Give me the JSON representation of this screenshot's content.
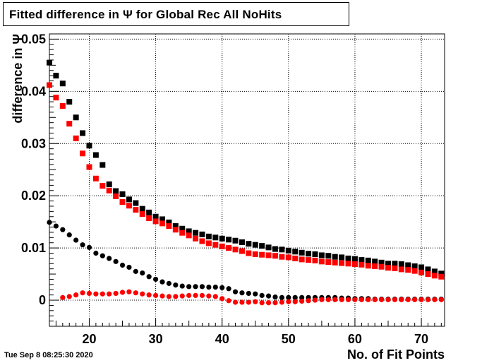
{
  "header": {
    "title": "Fitted difference in  Ψ  for Global Rec All NoHits"
  },
  "footer": {
    "timestamp": "Tue Sep  8 08:25:30 2020"
  },
  "chart_data": {
    "type": "scatter",
    "title": "Fitted difference in  Ψ  for Global Rec All NoHits",
    "xlabel": "No. of Fit Points",
    "ylabel": "difference in  Ψ",
    "xlim": [
      14,
      73.5
    ],
    "ylim": [
      -0.005,
      0.051
    ],
    "grid": true,
    "x_ticks": [
      20,
      30,
      40,
      50,
      60,
      70
    ],
    "x_tick_labels": [
      "20",
      "30",
      "40",
      "50",
      "60",
      "70"
    ],
    "y_ticks": [
      0,
      0.01,
      0.02,
      0.03,
      0.04,
      0.05
    ],
    "y_tick_labels": [
      "0",
      "0.01",
      "0.02",
      "0.03",
      "0.04",
      "0.05"
    ],
    "series": [
      {
        "color": "#000000",
        "marker": "square",
        "x": [
          14,
          15,
          16,
          17,
          18,
          19,
          20,
          21,
          22,
          23,
          24,
          25,
          26,
          27,
          28,
          29,
          30,
          31,
          32,
          33,
          34,
          35,
          36,
          37,
          38,
          39,
          40,
          41,
          42,
          43,
          44,
          45,
          46,
          47,
          48,
          49,
          50,
          51,
          52,
          53,
          54,
          55,
          56,
          57,
          58,
          59,
          60,
          61,
          62,
          63,
          64,
          65,
          66,
          67,
          68,
          69,
          70,
          71,
          72,
          73
        ],
        "values": [
          0.0455,
          0.043,
          0.0415,
          0.038,
          0.035,
          0.032,
          0.0296,
          0.0278,
          0.0259,
          0.0222,
          0.0209,
          0.0203,
          0.0193,
          0.0186,
          0.0175,
          0.0168,
          0.016,
          0.0155,
          0.0149,
          0.0142,
          0.0137,
          0.0132,
          0.0129,
          0.0126,
          0.0122,
          0.012,
          0.0118,
          0.0116,
          0.0114,
          0.0111,
          0.0108,
          0.0106,
          0.0104,
          0.0101,
          0.0098,
          0.0097,
          0.0095,
          0.0093,
          0.0091,
          0.0089,
          0.0088,
          0.0086,
          0.0085,
          0.0083,
          0.0082,
          0.008,
          0.0079,
          0.0077,
          0.0076,
          0.0074,
          0.0072,
          0.007,
          0.007,
          0.0069,
          0.0067,
          0.0065,
          0.0063,
          0.0059,
          0.0055,
          0.0051
        ]
      },
      {
        "color": "#ff0000",
        "marker": "square",
        "x": [
          14,
          15,
          16,
          17,
          18,
          19,
          20,
          21,
          22,
          23,
          24,
          25,
          26,
          27,
          28,
          29,
          30,
          31,
          32,
          33,
          34,
          35,
          36,
          37,
          38,
          39,
          40,
          41,
          42,
          43,
          44,
          45,
          46,
          47,
          48,
          49,
          50,
          51,
          52,
          53,
          54,
          55,
          56,
          57,
          58,
          59,
          60,
          61,
          62,
          63,
          64,
          65,
          66,
          67,
          68,
          69,
          70,
          71,
          72,
          73
        ],
        "values": [
          0.0412,
          0.0388,
          0.0372,
          0.0338,
          0.031,
          0.0281,
          0.0255,
          0.0233,
          0.0219,
          0.021,
          0.0199,
          0.0188,
          0.0181,
          0.0173,
          0.0165,
          0.0157,
          0.0151,
          0.0147,
          0.0142,
          0.0135,
          0.0129,
          0.0124,
          0.0118,
          0.0113,
          0.0109,
          0.0106,
          0.0103,
          0.01,
          0.0097,
          0.0094,
          0.009,
          0.0088,
          0.0087,
          0.0086,
          0.0085,
          0.0083,
          0.0082,
          0.008,
          0.0078,
          0.0077,
          0.0076,
          0.0074,
          0.0073,
          0.0072,
          0.0071,
          0.007,
          0.0069,
          0.0068,
          0.0066,
          0.0065,
          0.0064,
          0.0062,
          0.0061,
          0.0059,
          0.0058,
          0.0056,
          0.0053,
          0.005,
          0.0047,
          0.0045
        ]
      },
      {
        "color": "#000000",
        "marker": "circle",
        "x": [
          14,
          15,
          16,
          17,
          18,
          19,
          20,
          21,
          22,
          23,
          24,
          25,
          26,
          27,
          28,
          29,
          30,
          31,
          32,
          33,
          34,
          35,
          36,
          37,
          38,
          39,
          40,
          41,
          42,
          43,
          44,
          45,
          46,
          47,
          48,
          49,
          50,
          51,
          52,
          53,
          54,
          55,
          56,
          57,
          58,
          59,
          60,
          61,
          62,
          63,
          64,
          65,
          66,
          67,
          68,
          69,
          70,
          71,
          72,
          73
        ],
        "values": [
          0.0149,
          0.0142,
          0.0135,
          0.0125,
          0.0115,
          0.0106,
          0.0101,
          0.009,
          0.0085,
          0.008,
          0.0074,
          0.0067,
          0.0063,
          0.0055,
          0.0052,
          0.0045,
          0.004,
          0.0035,
          0.0032,
          0.0029,
          0.0027,
          0.0026,
          0.0026,
          0.0026,
          0.0025,
          0.0025,
          0.0024,
          0.0022,
          0.0016,
          0.0014,
          0.0013,
          0.0012,
          0.0009,
          0.0008,
          0.0006,
          0.0005,
          0.0005,
          0.0005,
          0.0005,
          0.0005,
          0.0005,
          0.0005,
          0.0005,
          0.0005,
          0.0004,
          0.0004,
          0.0003,
          0.0003,
          0.0003,
          0.0002,
          0.0002,
          0.0002,
          0.0002,
          0.0002,
          0.0002,
          0.0002,
          0.0002,
          0.0002,
          0.0002,
          0.0002
        ]
      },
      {
        "color": "#ff0000",
        "marker": "circle",
        "x": [
          16,
          17,
          18,
          19,
          20,
          21,
          22,
          23,
          24,
          25,
          26,
          27,
          28,
          29,
          30,
          31,
          32,
          33,
          34,
          35,
          36,
          37,
          38,
          39,
          40,
          41,
          42,
          43,
          44,
          45,
          46,
          47,
          48,
          49,
          50,
          51,
          52,
          53,
          54,
          55,
          56,
          57,
          58,
          59,
          60,
          61,
          62,
          63,
          64,
          65,
          66,
          67,
          68,
          69,
          70,
          71,
          72,
          73
        ],
        "values": [
          0.0005,
          0.0007,
          0.001,
          0.0014,
          0.0013,
          0.0012,
          0.0012,
          0.0012,
          0.0013,
          0.0015,
          0.0016,
          0.0014,
          0.0012,
          0.001,
          0.0009,
          0.0008,
          0.0007,
          0.0007,
          0.0008,
          0.0009,
          0.0009,
          0.0009,
          0.0008,
          0.0007,
          0.0003,
          -0.0001,
          -0.0004,
          -0.0004,
          -0.0004,
          -0.0003,
          -0.0005,
          -0.0005,
          -0.0005,
          -0.0004,
          -0.0003,
          -0.0003,
          -0.0002,
          -0.0001,
          0.0,
          0.0001,
          0.0001,
          0.0001,
          0.0001,
          0.0001,
          0.0001,
          0.0001,
          0.0001,
          0.0001,
          0.0001,
          0.0001,
          0.0001,
          0.0001,
          0.0001,
          0.0001,
          0.0001,
          0.0001,
          0.0001,
          0.0001
        ]
      }
    ]
  }
}
